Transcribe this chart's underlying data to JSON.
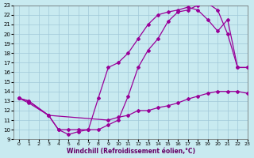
{
  "xlabel": "Windchill (Refroidissement éolien,°C)",
  "xlim": [
    -0.5,
    23
  ],
  "ylim": [
    9,
    23
  ],
  "xticks": [
    0,
    1,
    2,
    3,
    4,
    5,
    6,
    7,
    8,
    9,
    10,
    11,
    12,
    13,
    14,
    15,
    16,
    17,
    18,
    19,
    20,
    21,
    22,
    23
  ],
  "yticks": [
    9,
    10,
    11,
    12,
    13,
    14,
    15,
    16,
    17,
    18,
    19,
    20,
    21,
    22,
    23
  ],
  "bg_color": "#c8eaf0",
  "grid_color": "#a0c8d8",
  "line_color": "#990099",
  "line1_x": [
    0,
    1,
    3,
    4,
    5,
    6,
    7,
    8,
    9,
    10,
    11,
    12,
    13,
    14,
    15,
    16,
    17,
    18,
    19,
    20,
    21,
    22,
    23
  ],
  "line1_y": [
    13.3,
    13.0,
    11.5,
    10.0,
    9.5,
    9.8,
    10.0,
    10.0,
    10.5,
    11.0,
    13.5,
    16.5,
    18.3,
    19.5,
    21.3,
    22.3,
    22.5,
    23.0,
    23.2,
    22.5,
    20.0,
    16.5,
    16.5
  ],
  "line2_x": [
    0,
    1,
    3,
    4,
    5,
    6,
    7,
    8,
    9,
    10,
    11,
    12,
    13,
    14,
    15,
    16,
    17,
    18,
    19,
    20,
    21,
    22,
    23
  ],
  "line2_y": [
    13.3,
    13.0,
    11.5,
    10.0,
    10.0,
    10.0,
    10.0,
    13.3,
    16.5,
    17.0,
    18.0,
    19.5,
    21.0,
    22.0,
    22.3,
    22.5,
    22.8,
    22.5,
    21.5,
    20.3,
    21.5,
    16.5,
    16.5
  ],
  "line3_x": [
    0,
    1,
    3,
    9,
    10,
    11,
    12,
    13,
    14,
    15,
    16,
    17,
    18,
    19,
    20,
    21,
    22,
    23
  ],
  "line3_y": [
    13.3,
    12.8,
    11.5,
    11.0,
    11.3,
    11.5,
    12.0,
    12.0,
    12.3,
    12.5,
    12.8,
    13.2,
    13.5,
    13.8,
    14.0,
    14.0,
    14.0,
    13.8
  ]
}
